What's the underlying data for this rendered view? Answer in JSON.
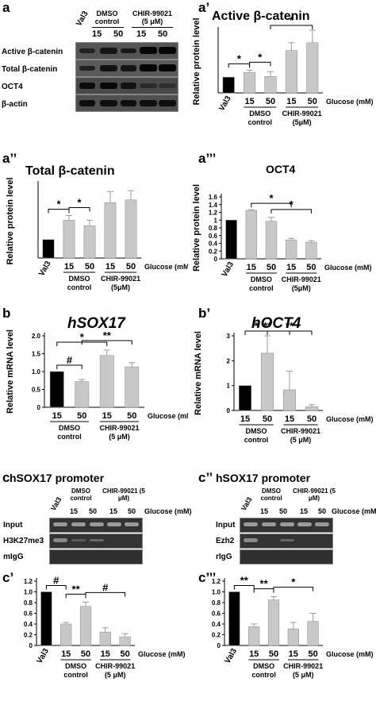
{
  "panel_labels": {
    "a": "a",
    "a1": "a’",
    "a2": "a’’",
    "a3": "a’’’",
    "b": "b",
    "b1": "b’",
    "c": "c",
    "c2": "c’’",
    "c1": "c’",
    "c3": "c’’’"
  },
  "western": {
    "header_val3": "Val3",
    "header_dmso": "DMSO control",
    "header_chir": "CHIR-99021 (5 μM)",
    "header_15a": "15",
    "header_50a": "50",
    "header_15b": "15",
    "header_50b": "50",
    "rows": [
      "Active β-catenin",
      "Total β-catenin",
      "OCT4",
      "β-actin"
    ]
  },
  "chip_left": {
    "title": "hSOX17 promoter",
    "val3": "Val3",
    "dmso": "DMSO control",
    "chir": "CHIR-99021 (5 μM)",
    "l15": "15",
    "l50": "50",
    "r15": "15",
    "r50": "50",
    "glucose": "Glucose (mM)",
    "rows": [
      "Input",
      "H3K27me3",
      "mIgG"
    ]
  },
  "chip_right": {
    "title": "hSOX17 promoter",
    "val3": "Val3",
    "dmso": "DMSO control",
    "chir": "CHIR-99021 (5 μM)",
    "l15": "15",
    "l50": "50",
    "r15": "15",
    "r50": "50",
    "glucose": "Glucose (mM)",
    "rows": [
      "Input",
      "Ezh2",
      "rIgG"
    ]
  },
  "chart_data": [
    {
      "id": "a1",
      "type": "bar",
      "title": "Active β-catenin",
      "ylabel": "Relative protein level",
      "ylim": [
        0,
        4
      ],
      "ticks": [],
      "categories": [
        "Val3",
        "15",
        "50",
        "15",
        "50"
      ],
      "values": [
        1.0,
        1.3,
        1.05,
        2.7,
        3.2
      ],
      "errors": [
        0,
        0.15,
        0.3,
        0.5,
        0.8
      ],
      "colors": [
        "#000000",
        "#c8c8c8",
        "#c8c8c8",
        "#c8c8c8",
        "#c8c8c8"
      ],
      "groups": [
        {
          "label": "DMSO control",
          "from": 1,
          "to": 2
        },
        {
          "label": "CHIR-99021 (5μM)",
          "from": 3,
          "to": 4
        }
      ],
      "xlabel_right": "Glucose (mM)",
      "sig": [
        {
          "from": 0,
          "to": 1,
          "label": "*"
        },
        {
          "from": 1,
          "to": 2,
          "label": "*"
        },
        {
          "from": 2,
          "to": 4,
          "label": "*"
        }
      ]
    },
    {
      "id": "a2",
      "type": "bar",
      "title": "Total β-catenin",
      "ylabel": "Relative protein level",
      "ylim": [
        0,
        4
      ],
      "ticks": [],
      "categories": [
        "Val3",
        "15",
        "50",
        "15",
        "50"
      ],
      "values": [
        1.0,
        2.05,
        1.75,
        3.0,
        3.15
      ],
      "errors": [
        0,
        0.25,
        0.3,
        0.6,
        0.5
      ],
      "colors": [
        "#000000",
        "#c8c8c8",
        "#c8c8c8",
        "#c8c8c8",
        "#c8c8c8"
      ],
      "groups": [
        {
          "label": "DMSO control",
          "from": 1,
          "to": 2
        },
        {
          "label": "CHIR-99021 (5μM)",
          "from": 3,
          "to": 4
        }
      ],
      "xlabel_right": "Glucose (mM)",
      "sig": [
        {
          "from": 0,
          "to": 1,
          "label": "*"
        },
        {
          "from": 1,
          "to": 2,
          "label": "*"
        }
      ]
    },
    {
      "id": "a3",
      "type": "bar",
      "title": "OCT4",
      "ylabel": "Relative protein level",
      "ylim": [
        0,
        1.6
      ],
      "ticks": [
        "0",
        "0.2",
        "0.4",
        "0.6",
        "0.8",
        "1",
        "1.2",
        "1.4",
        "1.6"
      ],
      "categories": [
        "Val3",
        "15",
        "50",
        "15",
        "50"
      ],
      "values": [
        1.0,
        1.25,
        0.97,
        0.49,
        0.43
      ],
      "errors": [
        0,
        0.02,
        0.1,
        0.04,
        0.04
      ],
      "colors": [
        "#000000",
        "#c8c8c8",
        "#c8c8c8",
        "#c8c8c8",
        "#c8c8c8"
      ],
      "groups": [
        {
          "label": "DMSO control",
          "from": 1,
          "to": 2
        },
        {
          "label": "CHIR-99021 (5μM)",
          "from": 3,
          "to": 4
        }
      ],
      "xlabel_right": "Glucose (mM)",
      "sig": [
        {
          "from": 1,
          "to": 3,
          "label": "*"
        },
        {
          "from": 2,
          "to": 4,
          "label": "*"
        }
      ]
    },
    {
      "id": "b",
      "type": "bar",
      "title": "hSOX17",
      "ylabel": "Relative mRNA level",
      "ylim": [
        0,
        2.0
      ],
      "ticks": [
        "0",
        "0.5",
        "1.0",
        "1.5",
        "2.0"
      ],
      "categories": [
        "15",
        "50",
        "15",
        "50"
      ],
      "values": [
        1.0,
        0.72,
        1.45,
        1.13
      ],
      "errors": [
        0,
        0.06,
        0.15,
        0.12
      ],
      "colors": [
        "#000000",
        "#c8c8c8",
        "#c8c8c8",
        "#c8c8c8"
      ],
      "groups": [
        {
          "label": "DMSO control",
          "from": 0,
          "to": 1
        },
        {
          "label": "CHIR-99021 (5 μM)",
          "from": 2,
          "to": 3
        }
      ],
      "xlabel_right": "Glucose (mM)",
      "sig": [
        {
          "from": 0,
          "to": 1,
          "label": "#"
        },
        {
          "from": 0,
          "to": 2,
          "label": "*"
        },
        {
          "from": 1,
          "to": 3,
          "label": "**"
        }
      ]
    },
    {
      "id": "b1",
      "type": "bar",
      "title": "hOCT4",
      "ylabel": "Relative mRNA level",
      "ylim": [
        0,
        3
      ],
      "ticks": [
        "0",
        "1",
        "2",
        "3"
      ],
      "categories": [
        "15",
        "50",
        "15",
        "50"
      ],
      "values": [
        1.0,
        2.3,
        0.83,
        0.15
      ],
      "errors": [
        0,
        0.7,
        0.75,
        0.08
      ],
      "colors": [
        "#000000",
        "#c8c8c8",
        "#c8c8c8",
        "#c8c8c8"
      ],
      "groups": [
        {
          "label": "DMSO control",
          "from": 0,
          "to": 1
        },
        {
          "label": "CHIR-99021 (5 μM)",
          "from": 2,
          "to": 3
        }
      ],
      "xlabel_right": "Glucose (mM)",
      "sig": [
        {
          "from": 0,
          "to": 1,
          "label": "*"
        },
        {
          "from": 0,
          "to": 2,
          "label": "**"
        },
        {
          "from": 1,
          "to": 3,
          "label": "**"
        }
      ]
    },
    {
      "id": "c1",
      "type": "bar",
      "title": "",
      "ylabel": "",
      "ylim": [
        0,
        1.2
      ],
      "ticks": [
        "0",
        "0.2",
        "0.4",
        "0.6",
        "0.8",
        "1.0",
        "1.2"
      ],
      "categories": [
        "Val3",
        "15",
        "50",
        "15",
        "50"
      ],
      "values": [
        1.0,
        0.4,
        0.73,
        0.25,
        0.16
      ],
      "errors": [
        0,
        0.03,
        0.08,
        0.08,
        0.06
      ],
      "colors": [
        "#000000",
        "#c8c8c8",
        "#c8c8c8",
        "#c8c8c8",
        "#c8c8c8"
      ],
      "groups": [
        {
          "label": "DMSO control",
          "from": 1,
          "to": 2
        },
        {
          "label": "CHIR-99021 (5 μM)",
          "from": 3,
          "to": 4
        }
      ],
      "xlabel_right": "Glucose (mM)",
      "sig": [
        {
          "from": 0,
          "to": 1,
          "label": "#"
        },
        {
          "from": 1,
          "to": 2,
          "label": "**"
        },
        {
          "from": 2,
          "to": 4,
          "label": "#"
        }
      ]
    },
    {
      "id": "c3",
      "type": "bar",
      "title": "",
      "ylabel": "",
      "ylim": [
        0,
        1.2
      ],
      "ticks": [
        "0",
        "0.2",
        "0.4",
        "0.6",
        "0.8",
        "1.0",
        "1.2"
      ],
      "categories": [
        "Val3",
        "15",
        "50",
        "15",
        "50"
      ],
      "values": [
        1.0,
        0.35,
        0.85,
        0.31,
        0.45
      ],
      "errors": [
        0,
        0.05,
        0.06,
        0.12,
        0.15
      ],
      "colors": [
        "#000000",
        "#c8c8c8",
        "#c8c8c8",
        "#c8c8c8",
        "#c8c8c8"
      ],
      "groups": [
        {
          "label": "DMSO control",
          "from": 1,
          "to": 2
        },
        {
          "label": "CHIR-99021 (5 μM)",
          "from": 3,
          "to": 4
        }
      ],
      "xlabel_right": "Glucose (mM)",
      "sig": [
        {
          "from": 0,
          "to": 1,
          "label": "**"
        },
        {
          "from": 1,
          "to": 2,
          "label": "**"
        },
        {
          "from": 2,
          "to": 4,
          "label": "*"
        }
      ]
    }
  ]
}
